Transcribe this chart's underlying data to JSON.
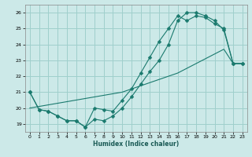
{
  "xlabel": "Humidex (Indice chaleur)",
  "ylabel": "",
  "bg_color": "#cce9e8",
  "grid_color": "#9fcfcc",
  "line_color": "#1a7a6e",
  "xlim": [
    -0.5,
    23.5
  ],
  "ylim": [
    18.5,
    26.5
  ],
  "xticks": [
    0,
    1,
    2,
    3,
    4,
    5,
    6,
    7,
    8,
    9,
    10,
    11,
    12,
    13,
    14,
    15,
    16,
    17,
    18,
    19,
    20,
    21,
    22,
    23
  ],
  "yticks": [
    19,
    20,
    21,
    22,
    23,
    24,
    25,
    26
  ],
  "line1_x": [
    0,
    1,
    2,
    3,
    4,
    5,
    6,
    7,
    8,
    9,
    10,
    11,
    12,
    13,
    14,
    15,
    16,
    17,
    18,
    19,
    20,
    21,
    22,
    23
  ],
  "line1_y": [
    21.0,
    19.9,
    19.8,
    19.5,
    19.2,
    19.2,
    18.8,
    19.3,
    19.2,
    19.5,
    20.0,
    20.7,
    21.5,
    22.3,
    23.0,
    24.0,
    25.5,
    26.0,
    26.0,
    25.8,
    25.5,
    24.9,
    22.8,
    22.8
  ],
  "line2_x": [
    0,
    1,
    2,
    3,
    4,
    5,
    6,
    7,
    8,
    9,
    10,
    11,
    12,
    13,
    14,
    15,
    16,
    17,
    18,
    19,
    20,
    21,
    22,
    23
  ],
  "line2_y": [
    21.0,
    19.9,
    19.8,
    19.5,
    19.2,
    19.2,
    18.8,
    20.0,
    19.9,
    19.8,
    20.5,
    21.2,
    22.2,
    23.2,
    24.2,
    25.0,
    25.8,
    25.5,
    25.8,
    25.7,
    25.3,
    25.0,
    22.8,
    22.8
  ],
  "line3_x": [
    0,
    1,
    2,
    3,
    4,
    5,
    6,
    7,
    8,
    9,
    10,
    11,
    12,
    13,
    14,
    15,
    16,
    17,
    18,
    19,
    20,
    21,
    22,
    23
  ],
  "line3_y": [
    20.0,
    20.1,
    20.2,
    20.3,
    20.4,
    20.5,
    20.6,
    20.7,
    20.8,
    20.9,
    21.0,
    21.2,
    21.4,
    21.6,
    21.8,
    22.0,
    22.2,
    22.5,
    22.8,
    23.1,
    23.4,
    23.7,
    22.8,
    22.8
  ],
  "marker": "D",
  "markersize": 2.5
}
